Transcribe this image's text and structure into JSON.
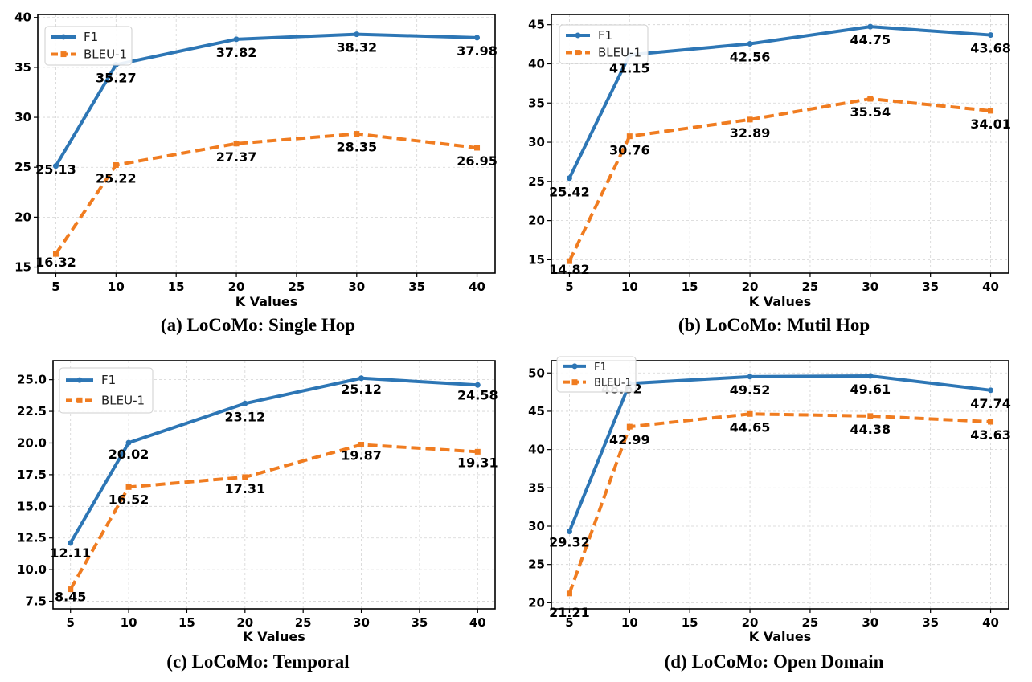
{
  "colors": {
    "f1": "#2d76b5",
    "bleu": "#f07c20",
    "grid": "#d4d4d4"
  },
  "chart_data": [
    {
      "type": "line",
      "caption": "(a) LoCoMo: Single Hop",
      "xlabel": "K Values",
      "ylabel": "",
      "x": [
        5,
        10,
        20,
        30,
        40
      ],
      "xticks": [
        5,
        10,
        15,
        20,
        25,
        30,
        35,
        40
      ],
      "xticklabels": [
        "5",
        "10",
        "15",
        "20",
        "25",
        "30",
        "35",
        "40"
      ],
      "xlim": [
        3.5,
        41.5
      ],
      "yticks": [
        15,
        20,
        25,
        30,
        35,
        40
      ],
      "yticklabels": [
        "15",
        "20",
        "25",
        "30",
        "35",
        "40"
      ],
      "ylim": [
        14.4,
        40.3
      ],
      "grid": true,
      "legend": "top-left",
      "series": [
        {
          "name": "F1",
          "values": [
            25.13,
            35.27,
            37.82,
            38.32,
            37.98
          ],
          "labels": [
            "25.13",
            "35.27",
            "37.82",
            "38.32",
            "37.98"
          ]
        },
        {
          "name": "BLEU-1",
          "values": [
            16.32,
            25.22,
            27.37,
            28.35,
            26.95
          ],
          "labels": [
            "16.32",
            "25.22",
            "27.37",
            "28.35",
            "26.95"
          ]
        }
      ]
    },
    {
      "type": "line",
      "caption": "(b) LoCoMo: Mutil Hop",
      "xlabel": "K Values",
      "ylabel": "",
      "x": [
        5,
        10,
        20,
        30,
        40
      ],
      "xticks": [
        5,
        10,
        15,
        20,
        25,
        30,
        35,
        40
      ],
      "xticklabels": [
        "5",
        "10",
        "15",
        "20",
        "25",
        "30",
        "35",
        "40"
      ],
      "xlim": [
        3.5,
        41.5
      ],
      "yticks": [
        15,
        20,
        25,
        30,
        35,
        40,
        45
      ],
      "yticklabels": [
        "15",
        "20",
        "25",
        "30",
        "35",
        "40",
        "45"
      ],
      "ylim": [
        13.3,
        46.3
      ],
      "grid": true,
      "legend": "top-left",
      "series": [
        {
          "name": "F1",
          "values": [
            25.42,
            41.15,
            42.56,
            44.75,
            43.68
          ],
          "labels": [
            "25.42",
            "41.15",
            "42.56",
            "44.75",
            "43.68"
          ]
        },
        {
          "name": "BLEU-1",
          "values": [
            14.82,
            30.76,
            32.89,
            35.54,
            34.01
          ],
          "labels": [
            "14.82",
            "30.76",
            "32.89",
            "35.54",
            "34.01"
          ]
        }
      ]
    },
    {
      "type": "line",
      "caption": "(c) LoCoMo: Temporal",
      "xlabel": "K Values",
      "ylabel": "",
      "x": [
        5,
        10,
        20,
        30,
        40
      ],
      "xticks": [
        5,
        10,
        15,
        20,
        25,
        30,
        35,
        40
      ],
      "xticklabels": [
        "5",
        "10",
        "15",
        "20",
        "25",
        "30",
        "35",
        "40"
      ],
      "xlim": [
        3.5,
        41.5
      ],
      "yticks": [
        7.5,
        10.0,
        12.5,
        15.0,
        17.5,
        20.0,
        22.5,
        25.0
      ],
      "yticklabels": [
        "7.5",
        "10.0",
        "12.5",
        "15.0",
        "17.5",
        "20.0",
        "22.5",
        "25.0"
      ],
      "ylim": [
        6.9,
        26.5
      ],
      "grid": true,
      "legend": "top-left",
      "series": [
        {
          "name": "F1",
          "values": [
            12.11,
            20.02,
            23.12,
            25.12,
            24.58
          ],
          "labels": [
            "12.11",
            "20.02",
            "23.12",
            "25.12",
            "24.58"
          ]
        },
        {
          "name": "BLEU-1",
          "values": [
            8.45,
            16.52,
            17.31,
            19.87,
            19.31
          ],
          "labels": [
            "8.45",
            "16.52",
            "17.31",
            "19.87",
            "19.31"
          ]
        }
      ]
    },
    {
      "type": "line",
      "caption": "(d) LoCoMo: Open Domain",
      "xlabel": "K Values",
      "ylabel": "",
      "x": [
        5,
        10,
        20,
        30,
        40
      ],
      "xticks": [
        5,
        10,
        15,
        20,
        25,
        30,
        35,
        40
      ],
      "xticklabels": [
        "5",
        "10",
        "15",
        "20",
        "25",
        "30",
        "35",
        "40"
      ],
      "xlim": [
        3.5,
        41.5
      ],
      "yticks": [
        20,
        25,
        30,
        35,
        40,
        45,
        50
      ],
      "yticklabels": [
        "20",
        "25",
        "30",
        "35",
        "40",
        "45",
        "50"
      ],
      "ylim": [
        19.2,
        51.6
      ],
      "grid": true,
      "legend": "top-left",
      "series": [
        {
          "name": "F1",
          "values": [
            29.32,
            48.62,
            49.52,
            49.61,
            47.74
          ],
          "labels": [
            "29.32",
            "48.62",
            "49.52",
            "49.61",
            "47.74"
          ]
        },
        {
          "name": "BLEU-1",
          "values": [
            21.21,
            42.99,
            44.65,
            44.38,
            43.63
          ],
          "labels": [
            "21.21",
            "42.99",
            "44.65",
            "44.38",
            "43.63"
          ]
        }
      ]
    }
  ]
}
